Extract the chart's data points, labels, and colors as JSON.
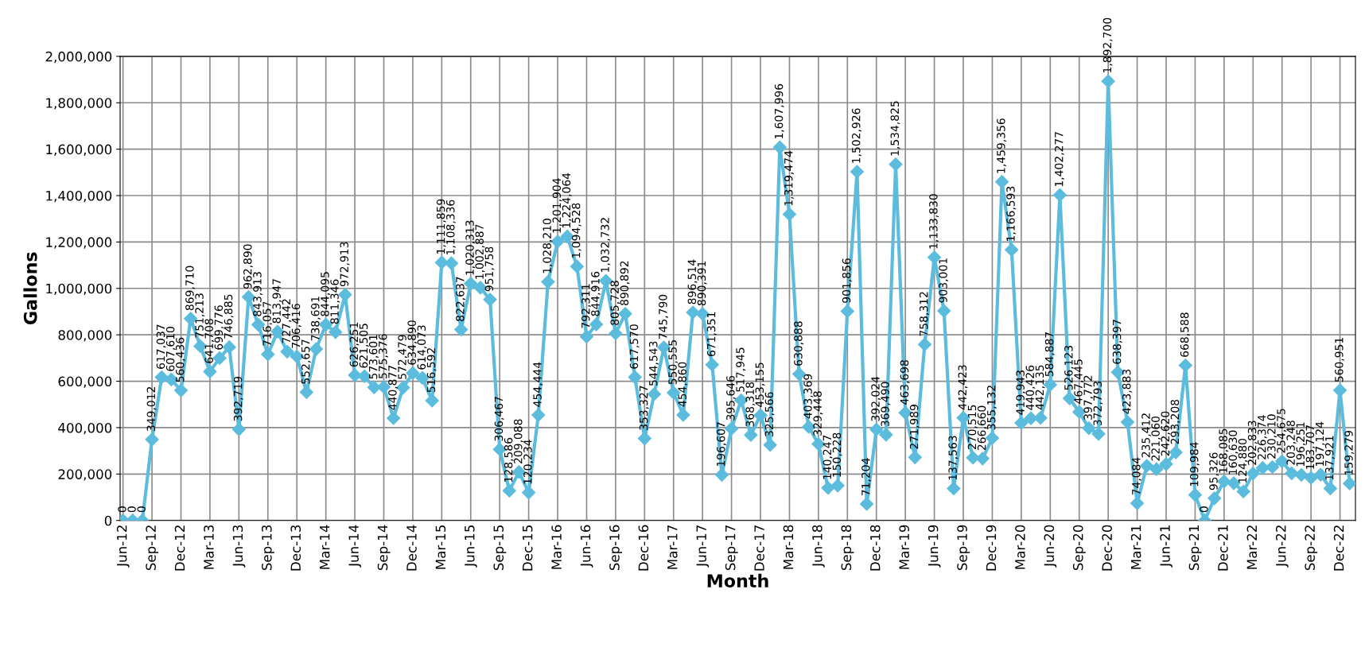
{
  "chart_data": {
    "type": "line",
    "xlabel": "Month",
    "ylabel": "Gallons",
    "categories": [
      "Jun-12",
      null,
      null,
      "Sep-12",
      null,
      null,
      "Dec-12",
      null,
      null,
      "Mar-13",
      null,
      null,
      "Jun-13",
      null,
      null,
      "Sep-13",
      null,
      null,
      "Dec-13",
      null,
      null,
      "Mar-14",
      null,
      null,
      "Jun-14",
      null,
      null,
      "Sep-14",
      null,
      null,
      "Dec-14",
      null,
      null,
      "Mar-15",
      null,
      null,
      "Jun-15",
      null,
      null,
      "Sep-15",
      null,
      null,
      "Dec-15",
      null,
      null,
      "Mar-16",
      null,
      null,
      "Jun-16",
      null,
      null,
      "Sep-16",
      null,
      null,
      "Dec-16",
      null,
      null,
      "Mar-17",
      null,
      null,
      "Jun-17",
      null,
      null,
      "Sep-17",
      null,
      null,
      "Dec-17",
      null,
      null,
      "Mar-18",
      null,
      null,
      "Jun-18",
      null,
      null,
      "Sep-18",
      null,
      null,
      "Dec-18",
      null,
      null,
      "Mar-19",
      null,
      null,
      "Jun-19",
      null,
      null,
      "Sep-19",
      null,
      null,
      "Dec-19",
      null,
      null,
      "Mar-20",
      null,
      null,
      "Jun-20",
      null,
      null,
      "Sep-20",
      null,
      null,
      "Dec-20",
      null,
      null,
      "Mar-21",
      null,
      null,
      "Jun-21",
      null,
      null,
      "Sep-21",
      null,
      null,
      "Dec-21",
      null,
      null,
      "Mar-22",
      null,
      null,
      "Jun-22",
      null,
      null,
      "Sep-22",
      null,
      null,
      "Dec-22",
      null
    ],
    "series": [
      {
        "color": "#5bbcdd",
        "values": [
          0,
          0,
          0,
          349012,
          617037,
          607610,
          560436,
          869710,
          751213,
          641708,
          699776,
          746885,
          392719,
          962890,
          843913,
          716057,
          813947,
          727442,
          706416,
          552657,
          738691,
          844095,
          811346,
          972913,
          626251,
          621505,
          573601,
          575376,
          440877,
          572479,
          634890,
          614073,
          516592,
          1111859,
          1108336,
          822637,
          1020313,
          1002887,
          951758,
          306467,
          128586,
          209088,
          120234,
          454444,
          1028210,
          1201904,
          1224064,
          1094528,
          792311,
          844916,
          1032732,
          805728,
          890892,
          617570,
          353327,
          544543,
          745790,
          550555,
          454860,
          896514,
          890391,
          671351,
          196607,
          395646,
          517945,
          368318,
          453155,
          325566,
          1607996,
          1319474,
          630888,
          403369,
          329448,
          140247,
          150228,
          901856,
          1502926,
          71204,
          392024,
          369490,
          1534825,
          463698,
          271989,
          758312,
          1133830,
          903001,
          137563,
          442423,
          270515,
          266660,
          355132,
          1459356,
          1166593,
          419943,
          440426,
          442135,
          584887,
          1402277,
          526123,
          467445,
          397772,
          372793,
          1892700,
          638397,
          423883,
          74084,
          235412,
          221060,
          242620,
          293208,
          668588,
          109984,
          0,
          95326,
          168085,
          160630,
          124880,
          202833,
          226374,
          230210,
          254675,
          203248,
          196251,
          183707,
          197124,
          137921,
          560951,
          159279
        ],
        "value_labels": [
          "0",
          "0",
          "0",
          "349,012",
          "617,037",
          "607,610",
          "560,436",
          "869,710",
          "751,213",
          "641,708",
          "699,776",
          "746,885",
          "392,719",
          "962,890",
          "843,913",
          "716,057",
          "813,947",
          "727,442",
          "706,416",
          "552,657",
          "738,691",
          "844,095",
          "811,346",
          "972,913",
          "626,251",
          "621,505",
          "573,601",
          "575,376",
          "440,877",
          "572,479",
          "634,890",
          "614,073",
          "516,592",
          "1,111,859",
          "1,108,336",
          "822,637",
          "1,020,313",
          "1,002,887",
          "951,758",
          "306,467",
          "128,586",
          "209,088",
          "120,234",
          "454,444",
          "1,028,210",
          "1,201,904",
          "1,224,064",
          "1,094,528",
          "792,311",
          "844,916",
          "1,032,732",
          "805,728",
          "890,892",
          "617,570",
          "353,327",
          "544,543",
          "745,790",
          "550,555",
          "454,860",
          "896,514",
          "890,391",
          "671,351",
          "196,607",
          "395,646",
          "517,945",
          "368,318",
          "453,155",
          "325,566",
          "1,607,996",
          "1,319,474",
          "630,888",
          "403,369",
          "329,448",
          "140,247",
          "150,228",
          "901,856",
          "1,502,926",
          "71,204",
          "392,024",
          "369,490",
          "1,534,825",
          "463,698",
          "271,989",
          "758,312",
          "1,133,830",
          "903,001",
          "137,563",
          "442,423",
          "270,515",
          "266,660",
          "355,132",
          "1,459,356",
          "1,166,593",
          "419,943",
          "440,426",
          "442,135",
          "584,887",
          "1,402,277",
          "526,123",
          "467,445",
          "397,772",
          "372,793",
          "1,892,700",
          "638,397",
          "423,883",
          "74,084",
          "235,412",
          "221,060",
          "242,620",
          "293,208",
          "668,588",
          "109,984",
          "0",
          "95,326",
          "168,085",
          "160,630",
          "124,880",
          "202,833",
          "226,374",
          "230,210",
          "254,675",
          "203,248",
          "196,251",
          "183,707",
          "197,124",
          "137,921",
          "560,951",
          "159,279"
        ]
      }
    ],
    "ylim": [
      0,
      2000000
    ],
    "yticks": [
      {
        "value": 0,
        "label": "0"
      },
      {
        "value": 200000,
        "label": "200,000"
      },
      {
        "value": 400000,
        "label": "400,000"
      },
      {
        "value": 600000,
        "label": "600,000"
      },
      {
        "value": 800000,
        "label": "800,000"
      },
      {
        "value": 1000000,
        "label": "1,000,000"
      },
      {
        "value": 1200000,
        "label": "1,200,000"
      },
      {
        "value": 1400000,
        "label": "1,400,000"
      },
      {
        "value": 1600000,
        "label": "1,600,000"
      },
      {
        "value": 1800000,
        "label": "1,800,000"
      },
      {
        "value": 2000000,
        "label": "2,000,000"
      }
    ],
    "grid": true,
    "marker": "diamond",
    "line_style": "solid"
  }
}
